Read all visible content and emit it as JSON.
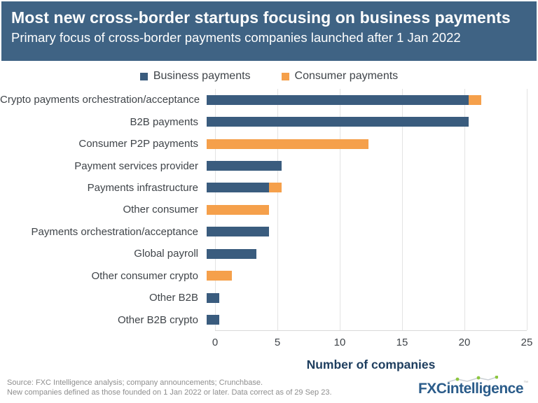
{
  "header": {
    "title": "Most new cross-border startups focusing on business payments",
    "subtitle": "Primary focus of cross-border payments companies launched after 1 Jan 2022"
  },
  "colors": {
    "header_bg": "#3F6384",
    "business": "#3A5C7E",
    "consumer": "#F5A04B",
    "grid": "#E3E3E3",
    "axis_line": "#D9D9D9",
    "text": "#3F4449",
    "axis_label": "#1E3E5F",
    "footer_text": "#8E8E8E",
    "logo_blue": "#2B5C8A",
    "logo_green": "#8DC63F"
  },
  "chart_data": {
    "type": "bar",
    "orientation": "horizontal",
    "stacked": true,
    "title": "Most new cross-border startups focusing on business payments",
    "subtitle": "Primary focus of cross-border payments companies launched after 1 Jan 2022",
    "categories": [
      "Crypto payments orchestration/acceptance",
      "B2B payments",
      "Consumer P2P payments",
      "Payment services provider",
      "Payments infrastructure",
      "Other consumer",
      "Payments orchestration/acceptance",
      "Global payroll",
      "Other consumer crypto",
      "Other B2B",
      "Other B2B crypto"
    ],
    "series": [
      {
        "name": "Business payments",
        "color": "#3A5C7E",
        "values": [
          21,
          21,
          0,
          6,
          5,
          0,
          5,
          4,
          0,
          1,
          1
        ]
      },
      {
        "name": "Consumer payments",
        "color": "#F5A04B",
        "values": [
          1,
          0,
          13,
          0,
          1,
          5,
          0,
          0,
          2,
          0,
          0
        ]
      }
    ],
    "xlabel": "Number of companies",
    "xlim": [
      0,
      25
    ],
    "xticks": [
      0,
      5,
      10,
      15,
      20,
      25
    ],
    "grid": true,
    "legend_position": "top"
  },
  "footer": {
    "source_line1": "Source: FXC Intelligence analysis; company announcements; Crunchbase.",
    "source_line2": "New companies defined as those founded on 1 Jan 2022 or later. Data correct as of 29 Sep 23.",
    "logo": {
      "bold": "FXC",
      "rest": "intelligence"
    }
  }
}
